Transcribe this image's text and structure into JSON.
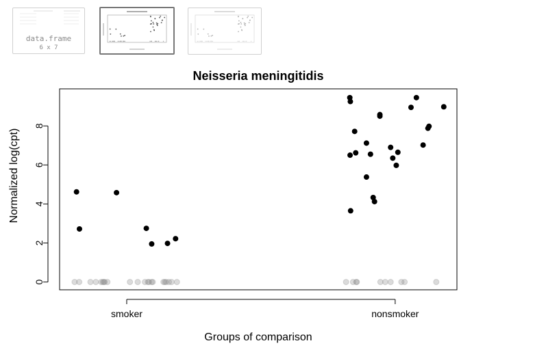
{
  "thumbnails": [
    {
      "kind": "data.frame",
      "label": "data.frame",
      "dims": "6 x 7",
      "active": false
    },
    {
      "kind": "plot",
      "title": "Neisseria meningitidis",
      "active": true
    },
    {
      "kind": "plot",
      "title": "Neisseria meningitidis",
      "active": false
    }
  ],
  "chart_data": {
    "type": "scatter",
    "title": "Neisseria meningitidis",
    "xlabel": "Groups of comparison",
    "ylabel": "Normalized log(cpt)",
    "categories": [
      "smoker",
      "nonsmoker"
    ],
    "x_range": [
      0.75,
      2.23
    ],
    "ylim": [
      -0.4,
      9.9
    ],
    "yticks": [
      0,
      2,
      4,
      6,
      8
    ],
    "grid": false,
    "legend": "none",
    "point_color": "#000000",
    "zero_point_color": "#888888",
    "series": [
      {
        "values": [
          [
            0.813,
            4.62
          ],
          [
            0.824,
            2.72
          ],
          [
            0.962,
            4.58
          ],
          [
            1.073,
            2.75
          ],
          [
            1.093,
            1.95
          ],
          [
            1.152,
            1.98
          ],
          [
            1.182,
            2.22
          ],
          [
            1.831,
            9.45
          ],
          [
            1.833,
            9.25
          ],
          [
            1.832,
            6.5
          ],
          [
            1.834,
            3.65
          ],
          [
            1.849,
            7.72
          ],
          [
            1.853,
            6.62
          ],
          [
            1.893,
            7.12
          ],
          [
            1.893,
            5.38
          ],
          [
            1.908,
            6.55
          ],
          [
            1.918,
            4.33
          ],
          [
            1.923,
            4.12
          ],
          [
            1.943,
            8.58
          ],
          [
            1.943,
            8.5
          ],
          [
            1.983,
            6.9
          ],
          [
            1.991,
            6.35
          ],
          [
            2.004,
            5.98
          ],
          [
            2.01,
            6.65
          ],
          [
            2.059,
            8.95
          ],
          [
            2.079,
            9.45
          ],
          [
            2.104,
            7.02
          ],
          [
            2.122,
            7.88
          ],
          [
            2.126,
            7.98
          ],
          [
            2.181,
            8.98
          ]
        ]
      },
      {
        "values": [
          [
            0.806,
            0
          ],
          [
            0.823,
            0
          ],
          [
            0.865,
            0
          ],
          [
            0.885,
            0
          ],
          [
            0.905,
            0
          ],
          [
            0.911,
            0
          ],
          [
            0.915,
            0
          ],
          [
            0.918,
            0
          ],
          [
            0.928,
            0
          ],
          [
            1.012,
            0
          ],
          [
            1.041,
            0
          ],
          [
            1.068,
            0
          ],
          [
            1.079,
            0
          ],
          [
            1.083,
            0
          ],
          [
            1.093,
            0
          ],
          [
            1.097,
            0
          ],
          [
            1.137,
            0
          ],
          [
            1.142,
            0
          ],
          [
            1.147,
            0
          ],
          [
            1.157,
            0
          ],
          [
            1.167,
            0
          ],
          [
            1.187,
            0
          ],
          [
            1.817,
            0
          ],
          [
            1.843,
            0
          ],
          [
            1.855,
            0
          ],
          [
            1.857,
            0
          ],
          [
            1.945,
            0
          ],
          [
            1.963,
            0
          ],
          [
            1.983,
            0
          ],
          [
            2.023,
            0
          ],
          [
            2.035,
            0
          ],
          [
            2.153,
            0
          ]
        ]
      }
    ]
  }
}
